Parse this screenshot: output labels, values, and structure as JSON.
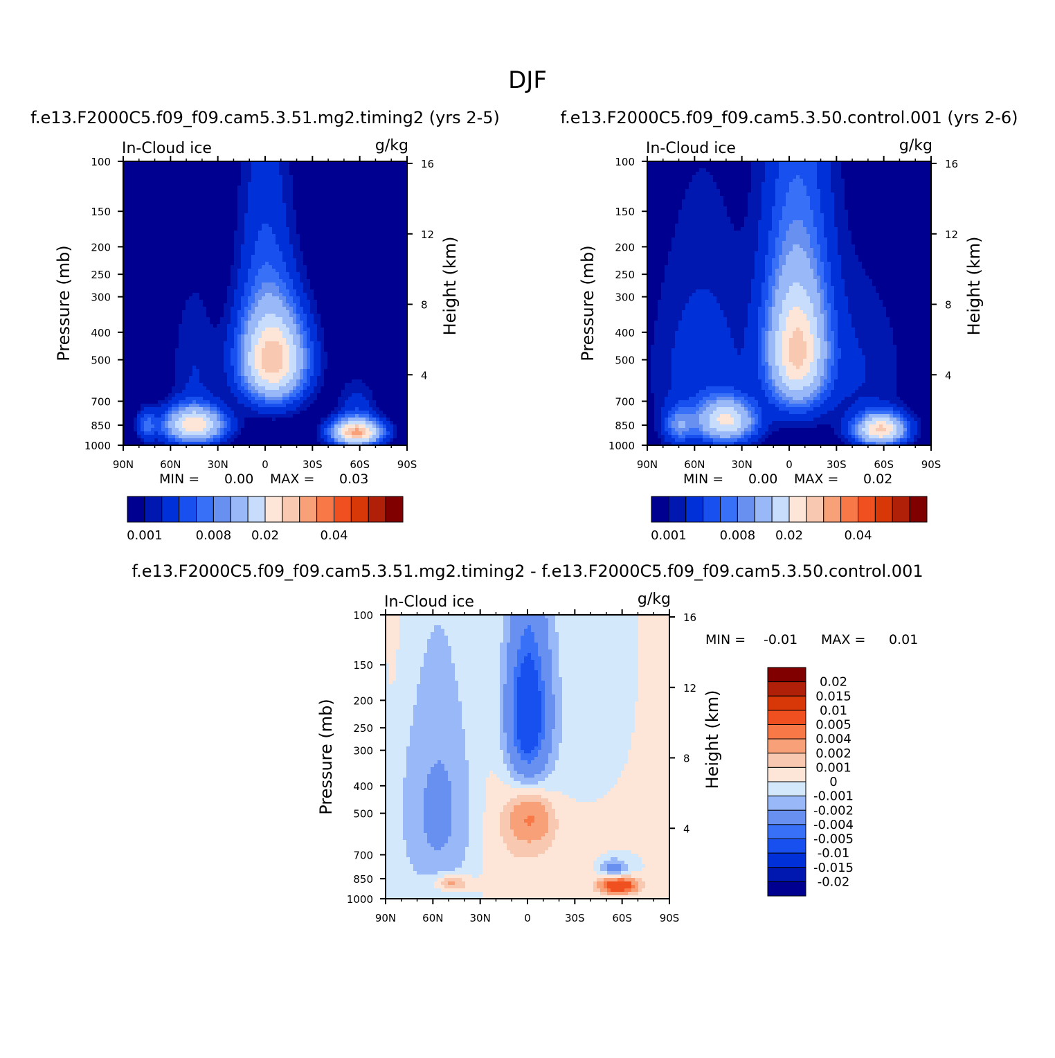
{
  "page_title": "DJF",
  "colors": {
    "abs_palette": [
      "#000090",
      "#0018b0",
      "#0030d8",
      "#1850f0",
      "#3870f8",
      "#6890f0",
      "#98b8f8",
      "#c8dcfc",
      "#fde6d8",
      "#f8c8b0",
      "#f8a078",
      "#f87848",
      "#f05020",
      "#d83808",
      "#b02008",
      "#800000"
    ],
    "diff_palette": [
      "#000090",
      "#0018b0",
      "#0030d8",
      "#1850f0",
      "#3870f8",
      "#6890f0",
      "#98b8f8",
      "#d4e8fc",
      "#fde6d8",
      "#f8c8b0",
      "#f8a078",
      "#f87848",
      "#f05020",
      "#d83808",
      "#b02008",
      "#800000"
    ]
  },
  "chart_data": [
    {
      "type": "heatmap",
      "title": "f.e13.F2000C5.f09_f09.cam5.3.51.mg2.timing2 (yrs 2-5)",
      "left_string": "In-Cloud ice",
      "right_string": "g/kg",
      "ylabel": "Pressure (mb)",
      "ylabel_right": "Height (km)",
      "x_ticks": [
        "90N",
        "60N",
        "30N",
        "0",
        "30S",
        "60S",
        "90S"
      ],
      "x_tick_lats": [
        90,
        60,
        30,
        0,
        -30,
        -60,
        -90
      ],
      "y_ticks": [
        "100",
        "150",
        "200",
        "250",
        "300",
        "400",
        "500",
        "700",
        "850",
        "1000"
      ],
      "y_tick_values": [
        100,
        150,
        200,
        250,
        300,
        400,
        500,
        700,
        850,
        1000
      ],
      "y_right_ticks": [
        "16",
        "12",
        "8",
        "4"
      ],
      "y_right_values": [
        16,
        12,
        8,
        4
      ],
      "min_label": "MIN =",
      "min_value": "0.00",
      "max_label": "MAX =",
      "max_value": "0.03",
      "levels": [
        0.001,
        0.002,
        0.004,
        0.006,
        0.008,
        0.01,
        0.015,
        0.02,
        0.025,
        0.03,
        0.035,
        0.04,
        0.045,
        0.05,
        0.055
      ],
      "colorbar_labels": [
        "0.001",
        "0.008",
        "0.02",
        "0.04"
      ],
      "colorbar_label_index": [
        0,
        4,
        7,
        11
      ],
      "blobs": [
        {
          "lat": -5,
          "p": 500,
          "slat": 13,
          "sp": 120,
          "amp": 0.028
        },
        {
          "lat": 0,
          "p": 250,
          "slat": 11,
          "sp": 160,
          "amp": 0.004
        },
        {
          "lat": 45,
          "p": 850,
          "slat": 12,
          "sp": 80,
          "amp": 0.024
        },
        {
          "lat": 45,
          "p": 550,
          "slat": 10,
          "sp": 220,
          "amp": 0.002
        },
        {
          "lat": -58,
          "p": 900,
          "slat": 10,
          "sp": 60,
          "amp": 0.03
        },
        {
          "lat": -58,
          "p": 750,
          "slat": 8,
          "sp": 110,
          "amp": 0.003
        },
        {
          "lat": 75,
          "p": 850,
          "slat": 4,
          "sp": 70,
          "amp": 0.006
        }
      ]
    },
    {
      "type": "heatmap",
      "title": "f.e13.F2000C5.f09_f09.cam5.3.50.control.001 (yrs 2-6)",
      "left_string": "In-Cloud ice",
      "right_string": "g/kg",
      "ylabel": "Pressure (mb)",
      "ylabel_right": "Height (km)",
      "x_ticks": [
        "90N",
        "60N",
        "30N",
        "0",
        "30S",
        "60S",
        "90S"
      ],
      "x_tick_lats": [
        90,
        60,
        30,
        0,
        -30,
        -60,
        -90
      ],
      "y_ticks": [
        "100",
        "150",
        "200",
        "250",
        "300",
        "400",
        "500",
        "700",
        "850",
        "1000"
      ],
      "y_tick_values": [
        100,
        150,
        200,
        250,
        300,
        400,
        500,
        700,
        850,
        1000
      ],
      "y_right_ticks": [
        "16",
        "12",
        "8",
        "4"
      ],
      "y_right_values": [
        16,
        12,
        8,
        4
      ],
      "min_label": "MIN =",
      "min_value": "0.00",
      "max_label": "MAX =",
      "max_value": "0.02",
      "levels": [
        0.001,
        0.002,
        0.004,
        0.006,
        0.008,
        0.01,
        0.015,
        0.02,
        0.025,
        0.03,
        0.035,
        0.04,
        0.045,
        0.05,
        0.055
      ],
      "colorbar_labels": [
        "0.001",
        "0.008",
        "0.02",
        "0.04"
      ],
      "colorbar_label_index": [
        0,
        4,
        7,
        11
      ],
      "blobs": [
        {
          "lat": -5,
          "p": 480,
          "slat": 12,
          "sp": 150,
          "amp": 0.024
        },
        {
          "lat": -5,
          "p": 250,
          "slat": 14,
          "sp": 200,
          "amp": 0.006
        },
        {
          "lat": 55,
          "p": 550,
          "slat": 22,
          "sp": 300,
          "amp": 0.003
        },
        {
          "lat": 40,
          "p": 820,
          "slat": 12,
          "sp": 90,
          "amp": 0.02
        },
        {
          "lat": 70,
          "p": 850,
          "slat": 6,
          "sp": 80,
          "amp": 0.008
        },
        {
          "lat": -45,
          "p": 550,
          "slat": 20,
          "sp": 250,
          "amp": 0.002
        },
        {
          "lat": -58,
          "p": 880,
          "slat": 10,
          "sp": 70,
          "amp": 0.026
        }
      ]
    },
    {
      "type": "heatmap",
      "title": "f.e13.F2000C5.f09_f09.cam5.3.51.mg2.timing2 - f.e13.F2000C5.f09_f09.cam5.3.50.control.001",
      "left_string": "In-Cloud ice",
      "right_string": "g/kg",
      "ylabel": "Pressure (mb)",
      "ylabel_right": "Height (km)",
      "x_ticks": [
        "90N",
        "60N",
        "30N",
        "0",
        "30S",
        "60S",
        "90S"
      ],
      "x_tick_lats": [
        90,
        60,
        30,
        0,
        -30,
        -60,
        -90
      ],
      "y_ticks": [
        "100",
        "150",
        "200",
        "250",
        "300",
        "400",
        "500",
        "700",
        "850",
        "1000"
      ],
      "y_tick_values": [
        100,
        150,
        200,
        250,
        300,
        400,
        500,
        700,
        850,
        1000
      ],
      "y_right_ticks": [
        "16",
        "12",
        "8",
        "4"
      ],
      "y_right_values": [
        16,
        12,
        8,
        4
      ],
      "min_label": "MIN =",
      "min_value": "-0.01",
      "max_label": "MAX =",
      "max_value": "0.01",
      "levels": [
        -0.02,
        -0.015,
        -0.01,
        -0.005,
        -0.004,
        -0.002,
        -0.001,
        0,
        0.001,
        0.002,
        0.004,
        0.005,
        0.01,
        0.015,
        0.02
      ],
      "colorbar_labels": [
        "0.02",
        "0.015",
        "0.01",
        "0.005",
        "0.004",
        "0.002",
        "0.001",
        "0",
        "-0.001",
        "-0.002",
        "-0.004",
        "-0.005",
        "-0.01",
        "-0.015",
        "-0.02"
      ],
      "blobs": [
        {
          "lat": 0,
          "p": 500,
          "slat": 26,
          "sp": 300,
          "amp": 0.0015
        },
        {
          "lat": -2,
          "p": 520,
          "slat": 9,
          "sp": 70,
          "amp": 0.0035
        },
        {
          "lat": -58,
          "p": 900,
          "slat": 8,
          "sp": 40,
          "amp": 0.008
        },
        {
          "lat": 48,
          "p": 880,
          "slat": 8,
          "sp": 40,
          "amp": 0.003
        },
        {
          "lat": 0,
          "p": 225,
          "slat": 10,
          "sp": 110,
          "amp": -0.007
        },
        {
          "lat": -15,
          "p": 320,
          "slat": 20,
          "sp": 220,
          "amp": -0.0012
        },
        {
          "lat": 55,
          "p": 500,
          "slat": 18,
          "sp": 300,
          "amp": -0.0025
        },
        {
          "lat": -55,
          "p": 780,
          "slat": 6,
          "sp": 40,
          "amp": -0.003
        },
        {
          "lat": 85,
          "p": 110,
          "slat": 3,
          "sp": 60,
          "amp": 0.0006
        },
        {
          "lat": -83,
          "p": 120,
          "slat": 3,
          "sp": 80,
          "amp": 0.0006
        }
      ]
    }
  ]
}
